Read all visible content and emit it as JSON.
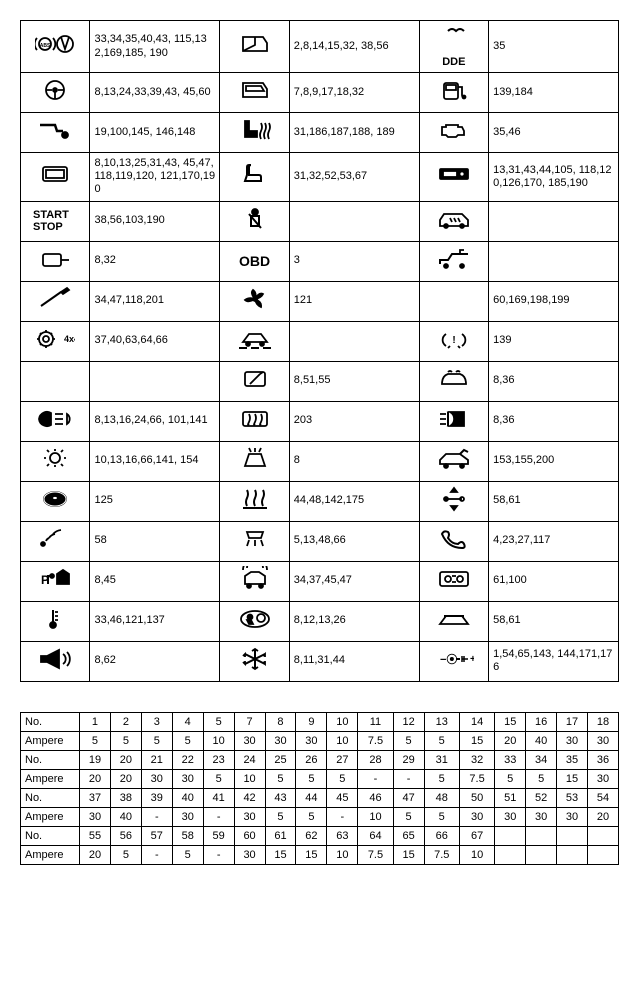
{
  "iconRows": [
    {
      "c1Icon": "abs-warning",
      "c1Text": "33,34,35,40,43, 115,132,169,185, 190",
      "c2Icon": "door-open",
      "c2Text": "2,8,14,15,32, 38,56",
      "c3Icon": "dde",
      "c3Text": "35"
    },
    {
      "c1Icon": "steering",
      "c1Text": "8,13,24,33,39,43, 45,60",
      "c2Icon": "door",
      "c2Text": "7,8,9,17,18,32",
      "c3Icon": "fuel",
      "c3Text": "139,184"
    },
    {
      "c1Icon": "towbar",
      "c1Text": "19,100,145, 146,148",
      "c2Icon": "seat-heater",
      "c2Text": "31,186,187,188, 189",
      "c3Icon": "engine",
      "c3Text": "35,46"
    },
    {
      "c1Icon": "display",
      "c1Text": "8,10,13,25,31,43, 45,47,118,119,120, 121,170,190",
      "c2Icon": "seat",
      "c2Text": "31,32,52,53,67",
      "c3Icon": "radio",
      "c3Text": "13,31,43,44,105, 118,120,126,170, 185,190"
    },
    {
      "c1Icon": "start-stop",
      "c1Text": "38,56,103,190",
      "c2Icon": "seatbelt",
      "c2Text": "",
      "c3Icon": "car-climate",
      "c3Text": ""
    },
    {
      "c1Icon": "mirror",
      "c1Text": "8,32",
      "c2Icon": "obd",
      "c2Text": "3",
      "c3Icon": "convertible",
      "c3Text": ""
    },
    {
      "c1Icon": "screwdriver",
      "c1Text": "34,47,118,201",
      "c2Icon": "fan",
      "c2Text": "121",
      "c3Icon": "blank",
      "c3Text": "60,169,198,199"
    },
    {
      "c1Icon": "gear-4x4",
      "c1Text": "37,40,63,64,66",
      "c2Icon": "car-lane",
      "c2Text": "",
      "c3Icon": "tpms",
      "c3Text": "139"
    },
    {
      "c1Icon": "blank",
      "c1Text": "",
      "c2Icon": "rear-wiper",
      "c2Text": "8,51,55",
      "c3Icon": "defrost-front",
      "c3Text": "8,36"
    },
    {
      "c1Icon": "headlight",
      "c1Text": "8,13,16,24,66, 101,141",
      "c2Icon": "rear-defrost",
      "c2Text": "203",
      "c3Icon": "fog-rear",
      "c3Text": "8,36"
    },
    {
      "c1Icon": "lamp-dash",
      "c1Text": "10,13,16,66,141, 154",
      "c2Icon": "washer",
      "c2Text": "8",
      "c3Icon": "tailgate",
      "c3Text": "153,155,200"
    },
    {
      "c1Icon": "cd",
      "c1Text": "125",
      "c2Icon": "heater-lines",
      "c2Text": "44,48,142,175",
      "c3Icon": "adjust-arrows",
      "c3Text": "58,61"
    },
    {
      "c1Icon": "sensor",
      "c1Text": "58",
      "c2Icon": "interior-light",
      "c2Text": "5,13,48,66",
      "c3Icon": "phone",
      "c3Text": "4,23,27,117"
    },
    {
      "c1Icon": "park-home",
      "c1Text": "8,45",
      "c2Icon": "car-sensor",
      "c2Text": "34,37,45,47",
      "c3Icon": "dashboard",
      "c3Text": "61,100"
    },
    {
      "c1Icon": "thermometer",
      "c1Text": "33,46,121,137",
      "c2Icon": "airbag",
      "c2Text": "8,12,13,26",
      "c3Icon": "sunroof",
      "c3Text": "58,61"
    },
    {
      "c1Icon": "horn",
      "c1Text": "8,62",
      "c2Icon": "snowflake",
      "c2Text": "8,11,31,44",
      "c3Icon": "battery-plug",
      "c3Text": "1,54,65,143, 144,171,176"
    }
  ],
  "fuseRows": [
    {
      "label": "No.",
      "cells": [
        "1",
        "2",
        "3",
        "4",
        "5",
        "7",
        "8",
        "9",
        "10",
        "11",
        "12",
        "13",
        "14",
        "15",
        "16",
        "17",
        "18"
      ]
    },
    {
      "label": "Ampere",
      "cells": [
        "5",
        "5",
        "5",
        "5",
        "10",
        "30",
        "30",
        "30",
        "10",
        "7.5",
        "5",
        "5",
        "15",
        "20",
        "40",
        "30",
        "30"
      ]
    },
    {
      "label": "No.",
      "cells": [
        "19",
        "20",
        "21",
        "22",
        "23",
        "24",
        "25",
        "26",
        "27",
        "28",
        "29",
        "31",
        "32",
        "33",
        "34",
        "35",
        "36"
      ]
    },
    {
      "label": "Ampere",
      "cells": [
        "20",
        "20",
        "30",
        "30",
        "5",
        "10",
        "5",
        "5",
        "5",
        "-",
        "-",
        "5",
        "7.5",
        "5",
        "5",
        "15",
        "30"
      ]
    },
    {
      "label": "No.",
      "cells": [
        "37",
        "38",
        "39",
        "40",
        "41",
        "42",
        "43",
        "44",
        "45",
        "46",
        "47",
        "48",
        "50",
        "51",
        "52",
        "53",
        "54"
      ]
    },
    {
      "label": "Ampere",
      "cells": [
        "30",
        "40",
        "-",
        "30",
        "-",
        "30",
        "5",
        "5",
        "-",
        "10",
        "5",
        "5",
        "30",
        "30",
        "30",
        "30",
        "20"
      ]
    },
    {
      "label": "No.",
      "cells": [
        "55",
        "56",
        "57",
        "58",
        "59",
        "60",
        "61",
        "62",
        "63",
        "64",
        "65",
        "66",
        "67",
        "",
        "",
        "",
        ""
      ]
    },
    {
      "label": "Ampere",
      "cells": [
        "20",
        "5",
        "-",
        "5",
        "-",
        "30",
        "15",
        "15",
        "10",
        "7.5",
        "15",
        "7.5",
        "10",
        "",
        "",
        "",
        ""
      ]
    }
  ],
  "labels": {
    "startStop": "START STOP",
    "obd": "OBD",
    "dde": "DDE",
    "x4x4": "4x4"
  }
}
